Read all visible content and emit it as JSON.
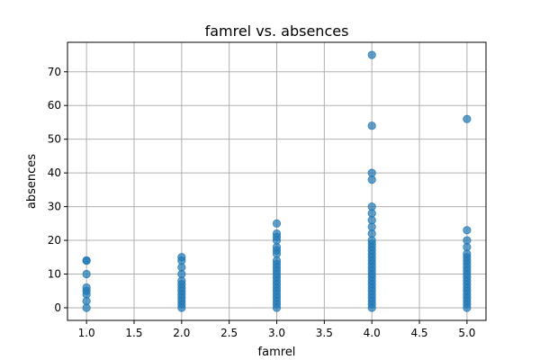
{
  "chart_data": {
    "type": "scatter",
    "title": "famrel vs. absences",
    "xlabel": "famrel",
    "ylabel": "absences",
    "xlim": [
      0.8,
      5.2
    ],
    "ylim": [
      -3.75,
      78.75
    ],
    "xticks": [
      "1.0",
      "1.5",
      "2.0",
      "2.5",
      "3.0",
      "3.5",
      "4.0",
      "4.5",
      "5.0"
    ],
    "yticks": [
      "0",
      "10",
      "20",
      "30",
      "40",
      "50",
      "60",
      "70"
    ],
    "grid": true,
    "marker_color": "#1f77b4",
    "marker_alpha": 0.7,
    "points": [
      [
        1,
        0
      ],
      [
        1,
        2
      ],
      [
        1,
        4
      ],
      [
        1,
        5
      ],
      [
        1,
        6
      ],
      [
        1,
        10
      ],
      [
        1,
        14
      ],
      [
        1,
        14
      ],
      [
        2,
        0
      ],
      [
        2,
        1
      ],
      [
        2,
        2
      ],
      [
        2,
        3
      ],
      [
        2,
        4
      ],
      [
        2,
        5
      ],
      [
        2,
        6
      ],
      [
        2,
        7
      ],
      [
        2,
        8
      ],
      [
        2,
        10
      ],
      [
        2,
        12
      ],
      [
        2,
        14
      ],
      [
        2,
        15
      ],
      [
        3,
        0
      ],
      [
        3,
        1
      ],
      [
        3,
        2
      ],
      [
        3,
        3
      ],
      [
        3,
        4
      ],
      [
        3,
        5
      ],
      [
        3,
        6
      ],
      [
        3,
        7
      ],
      [
        3,
        8
      ],
      [
        3,
        9
      ],
      [
        3,
        10
      ],
      [
        3,
        11
      ],
      [
        3,
        12
      ],
      [
        3,
        13
      ],
      [
        3,
        14
      ],
      [
        3,
        16
      ],
      [
        3,
        17
      ],
      [
        3,
        18
      ],
      [
        3,
        20
      ],
      [
        3,
        21
      ],
      [
        3,
        22
      ],
      [
        3,
        25
      ],
      [
        4,
        0
      ],
      [
        4,
        1
      ],
      [
        4,
        2
      ],
      [
        4,
        3
      ],
      [
        4,
        4
      ],
      [
        4,
        5
      ],
      [
        4,
        6
      ],
      [
        4,
        7
      ],
      [
        4,
        8
      ],
      [
        4,
        9
      ],
      [
        4,
        10
      ],
      [
        4,
        11
      ],
      [
        4,
        12
      ],
      [
        4,
        13
      ],
      [
        4,
        14
      ],
      [
        4,
        15
      ],
      [
        4,
        16
      ],
      [
        4,
        17
      ],
      [
        4,
        18
      ],
      [
        4,
        19
      ],
      [
        4,
        20
      ],
      [
        4,
        22
      ],
      [
        4,
        24
      ],
      [
        4,
        26
      ],
      [
        4,
        28
      ],
      [
        4,
        30
      ],
      [
        4,
        38
      ],
      [
        4,
        40
      ],
      [
        4,
        54
      ],
      [
        4,
        75
      ],
      [
        5,
        0
      ],
      [
        5,
        1
      ],
      [
        5,
        2
      ],
      [
        5,
        3
      ],
      [
        5,
        4
      ],
      [
        5,
        5
      ],
      [
        5,
        6
      ],
      [
        5,
        7
      ],
      [
        5,
        8
      ],
      [
        5,
        9
      ],
      [
        5,
        10
      ],
      [
        5,
        11
      ],
      [
        5,
        12
      ],
      [
        5,
        13
      ],
      [
        5,
        14
      ],
      [
        5,
        15
      ],
      [
        5,
        16
      ],
      [
        5,
        18
      ],
      [
        5,
        20
      ],
      [
        5,
        23
      ],
      [
        5,
        56
      ]
    ]
  }
}
